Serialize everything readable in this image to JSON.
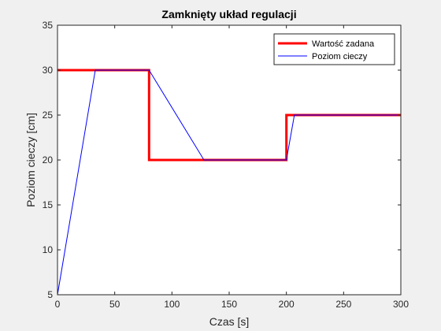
{
  "chart_data": {
    "type": "line",
    "title": "Zamknięty układ regulacji",
    "xlabel": "Czas [s]",
    "ylabel": "Poziom cieczy [cm]",
    "xlim": [
      0,
      300
    ],
    "ylim": [
      5,
      35
    ],
    "xticks": [
      0,
      50,
      100,
      150,
      200,
      250,
      300
    ],
    "yticks": [
      5,
      10,
      15,
      20,
      25,
      30,
      35
    ],
    "grid": false,
    "legend_position": "top-right",
    "series": [
      {
        "name": "Wartość zadana",
        "color": "#ff0000",
        "x": [
          0,
          80,
          80,
          200,
          200,
          300
        ],
        "y": [
          30,
          30,
          20,
          20,
          25,
          25
        ]
      },
      {
        "name": "Poziom cieczy",
        "color": "#0000ff",
        "x": [
          0,
          33,
          80,
          128,
          200,
          207,
          300
        ],
        "y": [
          5,
          30,
          30,
          20,
          20,
          25,
          25
        ]
      }
    ]
  }
}
